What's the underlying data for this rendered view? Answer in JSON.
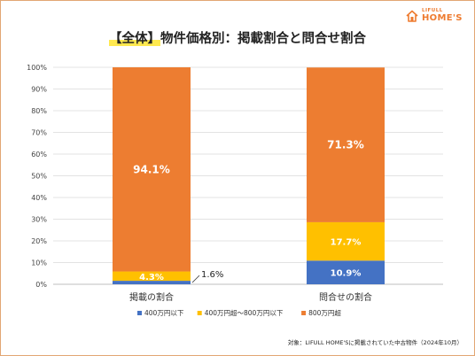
{
  "title": {
    "highlight": "【全体】",
    "rest": "物件価格別：掲載割合と問合せ割合"
  },
  "logo": {
    "top": "LIFULL",
    "bottom": "HOME'S",
    "icon": "house-icon",
    "color": "#ee7b2f"
  },
  "footnote": "対象：LIFULL HOME'Sに掲載されていた中古物件（2024年10月）",
  "chart_data": {
    "type": "bar",
    "stacked": true,
    "categories": [
      "掲載の割合",
      "問合せの割合"
    ],
    "series": [
      {
        "name": "400万円以下",
        "values": [
          1.6,
          10.9
        ],
        "color": "#4472c4",
        "labels": [
          "1.6%",
          "10.9%"
        ]
      },
      {
        "name": "400万円超～800万円以下",
        "values": [
          4.3,
          17.7
        ],
        "color": "#ffc000",
        "labels": [
          "4.3%",
          "17.7%"
        ]
      },
      {
        "name": "800万円超",
        "values": [
          94.1,
          71.3
        ],
        "color": "#ed7d31",
        "labels": [
          "94.1%",
          "71.3%"
        ]
      }
    ],
    "ylim": [
      0,
      100
    ],
    "yticks": [
      "0%",
      "10%",
      "20%",
      "30%",
      "40%",
      "50%",
      "60%",
      "70%",
      "80%",
      "90%",
      "100%"
    ],
    "grid": true,
    "legend": "bottom"
  }
}
